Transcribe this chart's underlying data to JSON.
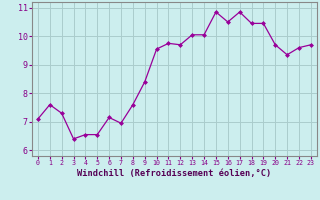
{
  "x": [
    0,
    1,
    2,
    3,
    4,
    5,
    6,
    7,
    8,
    9,
    10,
    11,
    12,
    13,
    14,
    15,
    16,
    17,
    18,
    19,
    20,
    21,
    22,
    23
  ],
  "y": [
    7.1,
    7.6,
    7.3,
    6.4,
    6.55,
    6.55,
    7.15,
    6.95,
    7.6,
    8.4,
    9.55,
    9.75,
    9.7,
    10.05,
    10.05,
    10.85,
    10.5,
    10.85,
    10.45,
    10.45,
    9.7,
    9.35,
    9.6,
    9.7
  ],
  "line_color": "#990099",
  "marker": "D",
  "marker_size": 2,
  "bg_color": "#cceeee",
  "grid_color": "#aacccc",
  "xlabel": "Windchill (Refroidissement éolien,°C)",
  "xlabel_color": "#550055",
  "xlim": [
    -0.5,
    23.5
  ],
  "ylim": [
    5.8,
    11.2
  ],
  "yticks": [
    6,
    7,
    8,
    9,
    10,
    11
  ],
  "xticks": [
    0,
    1,
    2,
    3,
    4,
    5,
    6,
    7,
    8,
    9,
    10,
    11,
    12,
    13,
    14,
    15,
    16,
    17,
    18,
    19,
    20,
    21,
    22,
    23
  ],
  "tick_color": "#880088",
  "spine_color": "#888888",
  "xtick_fontsize": 4.8,
  "ytick_fontsize": 6.0,
  "xlabel_fontsize": 6.2
}
